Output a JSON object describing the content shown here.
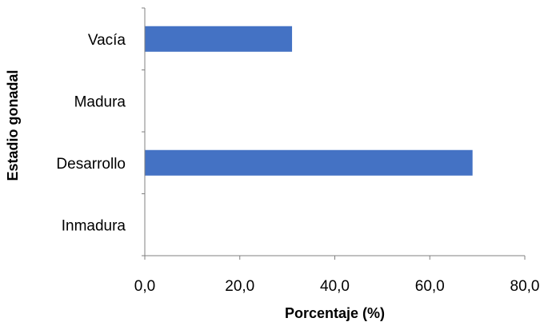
{
  "chart_data": {
    "type": "bar",
    "orientation": "horizontal",
    "title": "",
    "categories": [
      "Inmadura",
      "Desarrollo",
      "Madura",
      "Vacía"
    ],
    "series": [
      {
        "values": [
          0,
          69.0,
          0,
          31.0
        ],
        "color": "#4472C4"
      }
    ],
    "xlabel": "Porcentaje (%)",
    "ylabel": "Estadio gonadal",
    "xlim": [
      0,
      80
    ],
    "xticks": [
      0,
      20,
      40,
      60,
      80
    ],
    "xtick_labels": [
      "0,0",
      "20,0",
      "40,0",
      "60,0",
      "80,0"
    ],
    "grid": false,
    "legend": "none"
  }
}
